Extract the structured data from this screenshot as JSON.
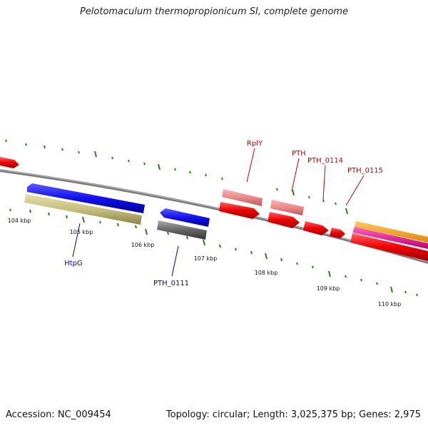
{
  "title": "Pelotomaculum thermopropionicum SI, complete genome",
  "accession": "Accession: NC_009454",
  "summary": "Topology: circular; Length: 3,025,375 bp; Genes: 2,975",
  "colors": {
    "backbone": "#888888",
    "ticks": "#2e7d1e",
    "gene_label_top": "#c80000",
    "gene_label_bottom": "#0000aa",
    "blue": "#1010ee",
    "olive": "#c7c07c",
    "gray": "#666666",
    "pink": "#ee8888",
    "red": "#ee0000",
    "orange": "#ffa000",
    "magenta": "#ee1199"
  },
  "kbp_labels": [
    "104 kbp",
    "105 kbp",
    "106 kbp",
    "107 kbp",
    "108 kbp",
    "109 kbp",
    "110 kbp"
  ],
  "gene_labels": {
    "top": [
      "RplY",
      "PTH",
      "PTH_0114",
      "PTH_0115"
    ],
    "bottom": [
      "HtpG",
      "PTH_0111"
    ]
  }
}
